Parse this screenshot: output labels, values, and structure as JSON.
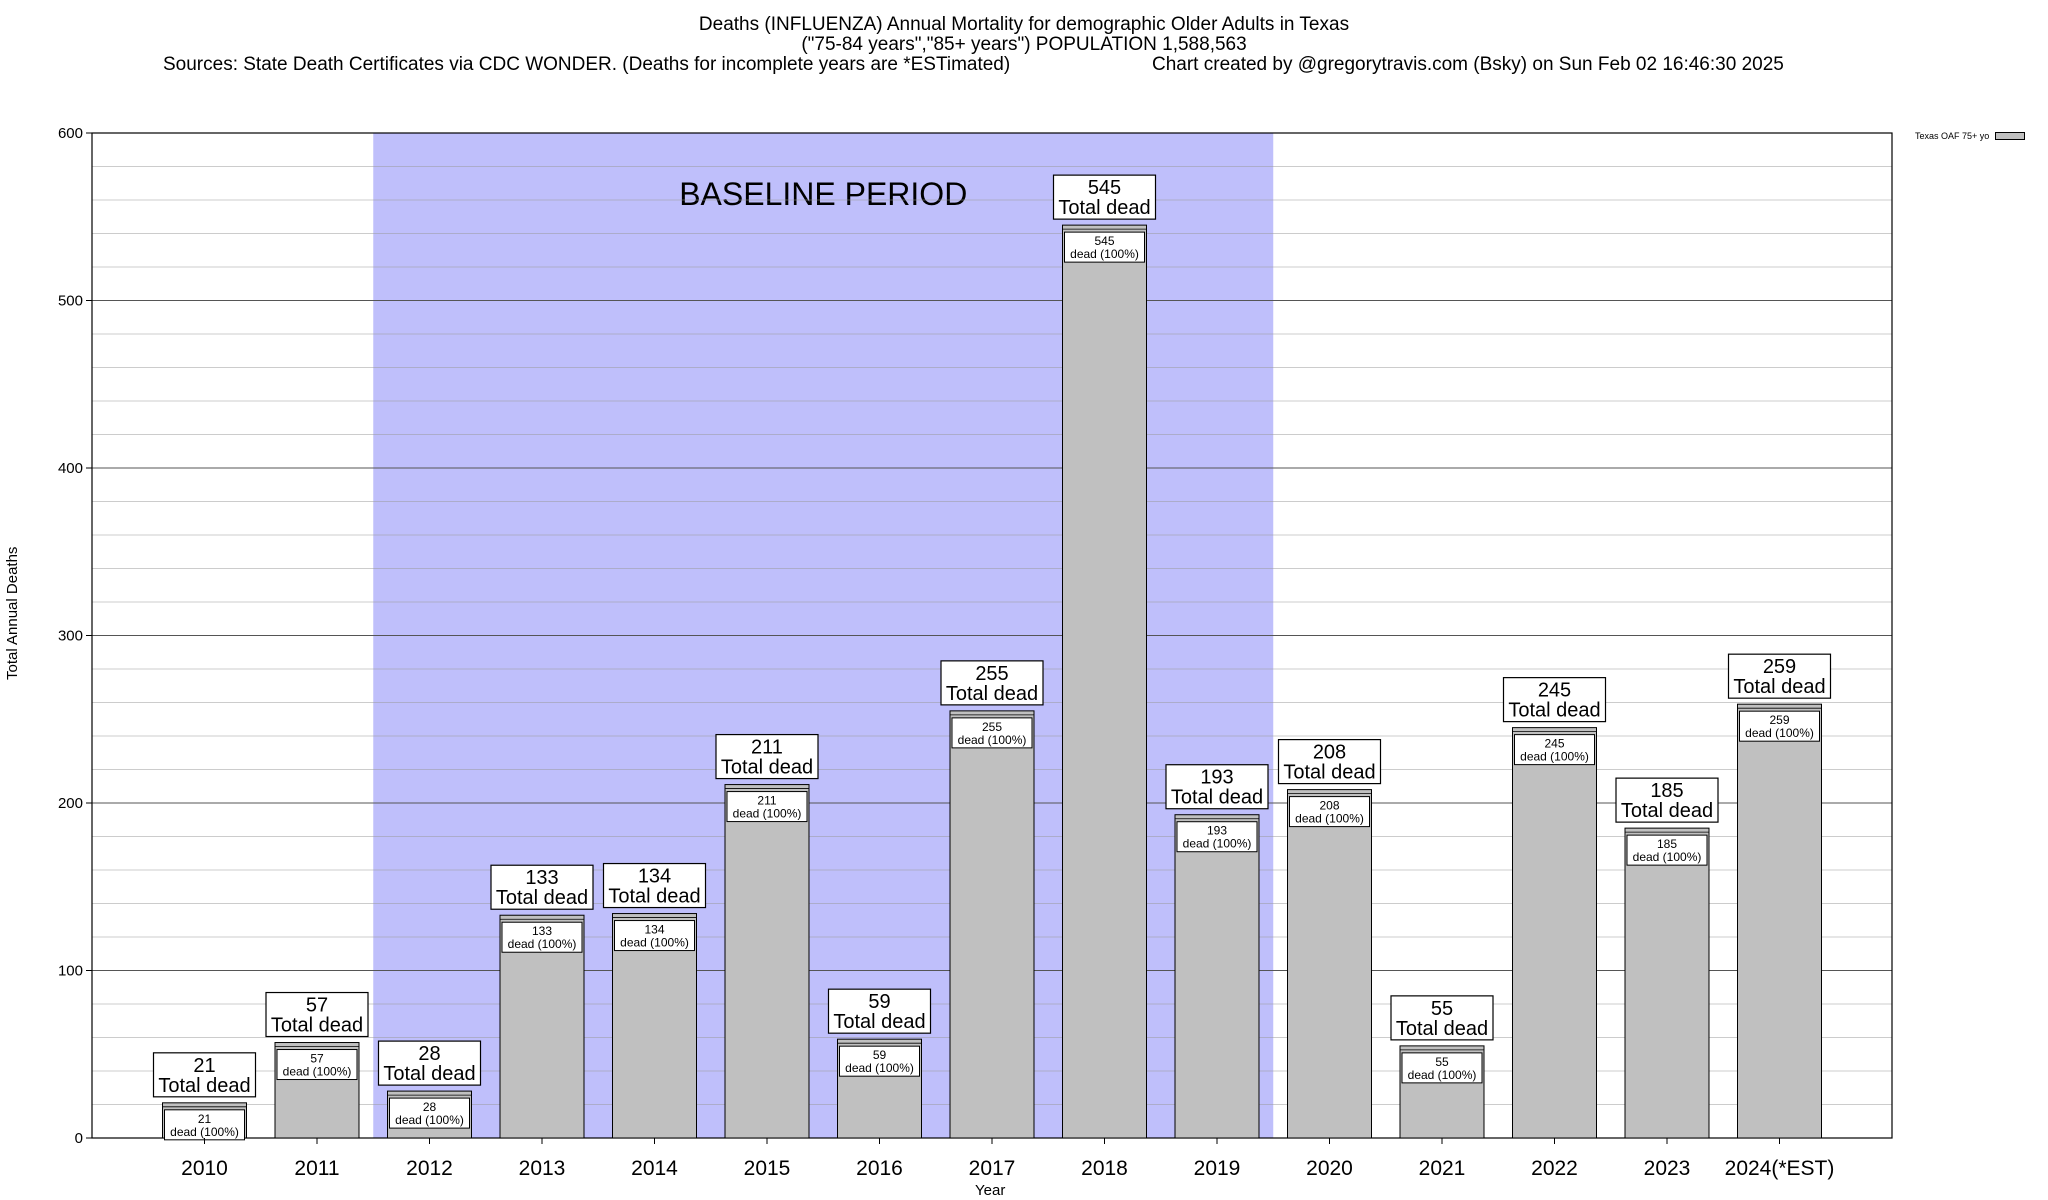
{
  "header": {
    "title_line1": "Deaths (INFLUENZA) Annual Mortality for demographic Older Adults in Texas",
    "title_line2": "(\"75-84 years\",\"85+ years\") POPULATION 1,588,563",
    "sources": "Sources: State Death Certificates via CDC WONDER. (Deaths for incomplete years are *ESTimated)",
    "credit": "Chart created by @gregorytravis.com (Bsky) on Sun Feb 02 16:46:30 2025"
  },
  "chart_data": {
    "type": "bar",
    "xlabel": "Year",
    "ylabel": "Total Annual Deaths",
    "ylim": [
      0,
      600
    ],
    "yticks": [
      0,
      100,
      200,
      300,
      400,
      500,
      600
    ],
    "grid": true,
    "legend": {
      "placement": "top-right",
      "label": "Texas OAF 75+ yo",
      "color": "#c0c0c0"
    },
    "shaded_region": {
      "label": "BASELINE PERIOD",
      "from": "2012",
      "to": "2019",
      "color": "#bfbffb"
    },
    "categories": [
      "2010",
      "2011",
      "2012",
      "2013",
      "2014",
      "2015",
      "2016",
      "2017",
      "2018",
      "2019",
      "2020",
      "2021",
      "2022",
      "2023",
      "2024(*EST)"
    ],
    "series": [
      {
        "name": "Texas OAF 75+ yo",
        "color": "#c0c0c0",
        "values": [
          21,
          57,
          28,
          133,
          134,
          211,
          59,
          255,
          545,
          193,
          208,
          55,
          245,
          185,
          259
        ]
      }
    ],
    "top_label_suffix": "Total dead",
    "inner_label_suffix": "dead (100%)"
  }
}
